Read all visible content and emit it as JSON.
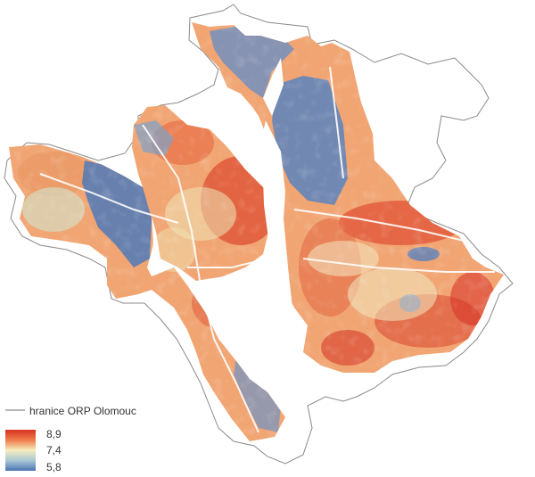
{
  "legend": {
    "boundary_label": "hranice ORP Olomouc",
    "scale_max": "8,9",
    "scale_mid": "7,4",
    "scale_min": "5,8"
  },
  "colors": {
    "high": "#d7301f",
    "mid_high": "#f4a36c",
    "mid": "#f5ecbc",
    "mid_low": "#9ec3d6",
    "low": "#4a73b3",
    "boundary": "#888888"
  }
}
